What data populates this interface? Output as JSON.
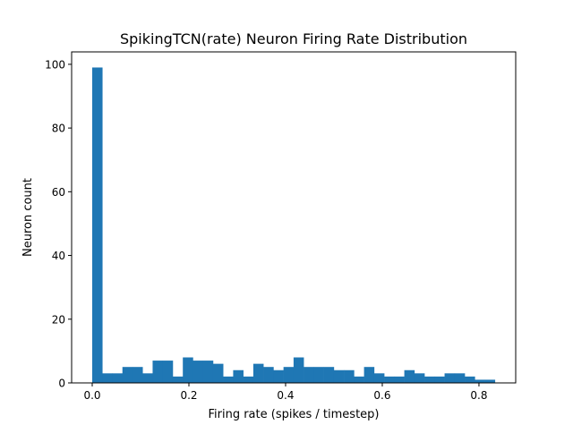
{
  "chart_data": {
    "type": "bar",
    "subtype": "histogram",
    "title": "SpikingTCN(rate) Neuron Firing Rate Distribution",
    "xlabel": "Firing rate (spikes / timestep)",
    "ylabel": "Neuron count",
    "bin_range": [
      0,
      0.833
    ],
    "counts": [
      99,
      3,
      3,
      5,
      5,
      3,
      7,
      7,
      2,
      8,
      7,
      7,
      6,
      2,
      4,
      2,
      6,
      5,
      4,
      5,
      8,
      5,
      5,
      5,
      4,
      4,
      2,
      5,
      3,
      2,
      2,
      4,
      3,
      2,
      2,
      3,
      3,
      2,
      1,
      1
    ],
    "xlim": [
      -0.0426,
      0.876
    ],
    "ylim": [
      0,
      103.9
    ],
    "xticks": [
      0.0,
      0.2,
      0.4,
      0.6,
      0.8
    ],
    "xtick_labels": [
      "0.0",
      "0.2",
      "0.4",
      "0.6",
      "0.8"
    ],
    "yticks": [
      0,
      20,
      40,
      60,
      80,
      100
    ],
    "ytick_labels": [
      "0",
      "20",
      "40",
      "60",
      "80",
      "100"
    ],
    "grid": false,
    "bar_color": "#1f77b4"
  }
}
